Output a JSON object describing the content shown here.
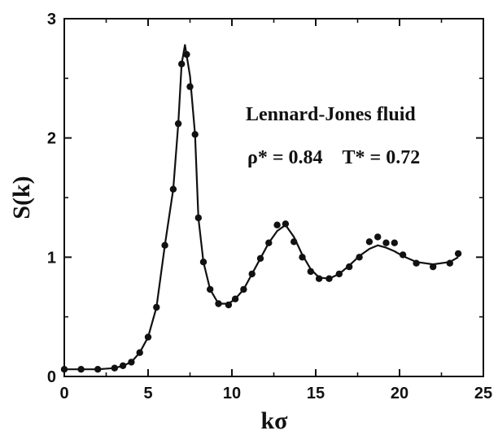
{
  "chart_data": {
    "type": "scatter",
    "xlabel": "kσ",
    "ylabel": "S(k)",
    "xlim": [
      0,
      25
    ],
    "ylim": [
      0,
      3
    ],
    "x_ticks": [
      "0",
      "5",
      "10",
      "15",
      "20",
      "25"
    ],
    "y_ticks": [
      "0",
      "1",
      "2",
      "3"
    ],
    "annotations": [
      "Lennard-Jones fluid",
      "ρ* = 0.84    T* = 0.72"
    ],
    "grid": false,
    "legend": "none",
    "series": [
      {
        "style": "markers",
        "color": "#111111",
        "x": [
          0.0,
          1.0,
          2.0,
          3.0,
          3.5,
          4.0,
          4.5,
          5.0,
          5.5,
          6.0,
          6.5,
          6.8,
          7.0,
          7.3,
          7.5,
          7.8,
          8.0,
          8.3,
          8.7,
          9.2,
          9.8,
          10.2,
          10.7,
          11.2,
          11.7,
          12.2,
          12.7,
          13.2,
          13.7,
          14.2,
          14.7,
          15.2,
          15.8,
          16.4,
          17.0,
          17.6,
          18.2,
          18.7,
          19.2,
          19.7,
          20.2,
          21.0,
          22.0,
          23.0,
          23.5
        ],
        "y": [
          0.06,
          0.06,
          0.06,
          0.07,
          0.09,
          0.12,
          0.2,
          0.33,
          0.58,
          1.1,
          1.57,
          2.12,
          2.62,
          2.7,
          2.43,
          2.03,
          1.33,
          0.96,
          0.73,
          0.61,
          0.6,
          0.65,
          0.73,
          0.86,
          0.99,
          1.12,
          1.27,
          1.28,
          1.13,
          1.0,
          0.88,
          0.82,
          0.82,
          0.86,
          0.92,
          1.0,
          1.13,
          1.17,
          1.12,
          1.12,
          1.02,
          0.95,
          0.92,
          0.95,
          1.03
        ]
      },
      {
        "style": "line",
        "color": "#111111",
        "x": [
          0.0,
          1.0,
          2.0,
          3.0,
          3.5,
          4.0,
          4.5,
          5.0,
          5.5,
          6.0,
          6.5,
          6.8,
          7.0,
          7.2,
          7.5,
          7.8,
          8.0,
          8.3,
          8.7,
          9.2,
          9.8,
          10.2,
          10.7,
          11.2,
          11.7,
          12.2,
          12.7,
          13.2,
          13.7,
          14.2,
          14.7,
          15.2,
          15.8,
          16.4,
          17.0,
          17.6,
          18.2,
          18.7,
          19.2,
          19.7,
          20.2,
          21.0,
          22.0,
          23.0,
          23.5
        ],
        "y": [
          0.06,
          0.06,
          0.06,
          0.07,
          0.09,
          0.12,
          0.2,
          0.33,
          0.58,
          1.1,
          1.57,
          2.12,
          2.62,
          2.78,
          2.52,
          2.03,
          1.33,
          0.96,
          0.73,
          0.61,
          0.61,
          0.65,
          0.73,
          0.86,
          0.99,
          1.12,
          1.22,
          1.27,
          1.17,
          1.02,
          0.9,
          0.83,
          0.82,
          0.86,
          0.93,
          1.01,
          1.07,
          1.1,
          1.08,
          1.05,
          1.01,
          0.96,
          0.94,
          0.96,
          1.0
        ]
      }
    ]
  }
}
